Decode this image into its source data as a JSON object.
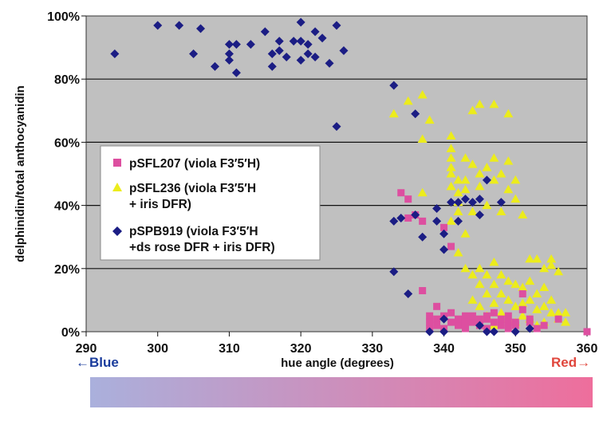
{
  "chart_data": {
    "type": "scatter",
    "xlabel": "hue angle (degrees)",
    "ylabel": "delphinidin/total anthocyanidin",
    "xlim": [
      290,
      360
    ],
    "ylim": [
      0,
      100
    ],
    "x_ticks": [
      "290",
      "300",
      "310",
      "320",
      "330",
      "340",
      "350",
      "360"
    ],
    "y_ticks": [
      "0%",
      "20%",
      "40%",
      "60%",
      "80%",
      "100%"
    ],
    "grid": "horizontal",
    "legend_position": "middle-left",
    "plot_background": "#c0c0c0",
    "hue_bar": {
      "left_label": "Blue",
      "right_label": "Red",
      "left_color": "#aab0dc",
      "right_color": "#ee6e9c",
      "left_label_color": "#1a3c9c",
      "right_label_color": "#e0463c"
    },
    "series": [
      {
        "name": "pSFL207 (viola F3′5′H)",
        "marker": "square",
        "color": "#dd4fa0",
        "points": [
          [
            334,
            44
          ],
          [
            335,
            42
          ],
          [
            335,
            36
          ],
          [
            336,
            37
          ],
          [
            337,
            13
          ],
          [
            337,
            35
          ],
          [
            339,
            8
          ],
          [
            340,
            33
          ],
          [
            341,
            27
          ],
          [
            338,
            5
          ],
          [
            338,
            3
          ],
          [
            339,
            4
          ],
          [
            339,
            2
          ],
          [
            340,
            1
          ],
          [
            340,
            5
          ],
          [
            341,
            3
          ],
          [
            341,
            6
          ],
          [
            342,
            2
          ],
          [
            342,
            4
          ],
          [
            343,
            5
          ],
          [
            343,
            1
          ],
          [
            344,
            3
          ],
          [
            344,
            5
          ],
          [
            345,
            2
          ],
          [
            345,
            4
          ],
          [
            346,
            1
          ],
          [
            346,
            5
          ],
          [
            347,
            3
          ],
          [
            347,
            6
          ],
          [
            348,
            2
          ],
          [
            348,
            4
          ],
          [
            349,
            1
          ],
          [
            349,
            5
          ],
          [
            350,
            3
          ],
          [
            350,
            2
          ],
          [
            351,
            7
          ],
          [
            351,
            12
          ],
          [
            352,
            3
          ],
          [
            352,
            4
          ],
          [
            353,
            1
          ],
          [
            354,
            2
          ],
          [
            356,
            4
          ],
          [
            360,
            0
          ],
          [
            338,
            1
          ],
          [
            343,
            3
          ],
          [
            346,
            4
          ],
          [
            349,
            3
          ]
        ]
      },
      {
        "name": "pSFL236 (viola F3′5′H + iris DFR)",
        "marker": "triangle",
        "color": "#ecec1c",
        "points": [
          [
            333,
            69
          ],
          [
            335,
            73
          ],
          [
            337,
            75
          ],
          [
            337,
            61
          ],
          [
            338,
            67
          ],
          [
            337,
            44
          ],
          [
            341,
            62
          ],
          [
            341,
            58
          ],
          [
            341,
            55
          ],
          [
            341,
            50
          ],
          [
            341,
            46
          ],
          [
            342,
            41
          ],
          [
            342,
            38
          ],
          [
            343,
            55
          ],
          [
            343,
            48
          ],
          [
            343,
            45
          ],
          [
            344,
            70
          ],
          [
            345,
            72
          ],
          [
            345,
            50
          ],
          [
            345,
            46
          ],
          [
            346,
            40
          ],
          [
            346,
            52
          ],
          [
            347,
            72
          ],
          [
            347,
            55
          ],
          [
            347,
            48
          ],
          [
            348,
            50
          ],
          [
            348,
            38
          ],
          [
            349,
            69
          ],
          [
            349,
            54
          ],
          [
            349,
            45
          ],
          [
            350,
            48
          ],
          [
            350,
            42
          ],
          [
            351,
            37
          ],
          [
            352,
            23
          ],
          [
            353,
            23
          ],
          [
            354,
            20
          ],
          [
            355,
            23
          ],
          [
            355,
            21
          ],
          [
            356,
            19
          ],
          [
            344,
            10
          ],
          [
            344,
            18
          ],
          [
            345,
            20
          ],
          [
            345,
            15
          ],
          [
            345,
            8
          ],
          [
            346,
            18
          ],
          [
            346,
            12
          ],
          [
            346,
            5
          ],
          [
            347,
            22
          ],
          [
            347,
            15
          ],
          [
            347,
            9
          ],
          [
            347,
            2
          ],
          [
            348,
            18
          ],
          [
            348,
            12
          ],
          [
            348,
            6
          ],
          [
            349,
            16
          ],
          [
            349,
            10
          ],
          [
            349,
            4
          ],
          [
            350,
            15
          ],
          [
            350,
            8
          ],
          [
            350,
            3
          ],
          [
            351,
            14
          ],
          [
            351,
            9
          ],
          [
            351,
            5
          ],
          [
            352,
            16
          ],
          [
            352,
            10
          ],
          [
            352,
            4
          ],
          [
            353,
            12
          ],
          [
            353,
            7
          ],
          [
            353,
            2
          ],
          [
            354,
            14
          ],
          [
            354,
            8
          ],
          [
            354,
            3
          ],
          [
            355,
            10
          ],
          [
            355,
            6
          ],
          [
            356,
            6
          ],
          [
            356,
            4
          ],
          [
            357,
            6
          ],
          [
            357,
            3
          ],
          [
            341,
            35
          ],
          [
            342,
            25
          ],
          [
            343,
            31
          ],
          [
            344,
            38
          ],
          [
            342,
            44
          ],
          [
            343,
            20
          ],
          [
            342,
            48
          ],
          [
            341,
            52
          ],
          [
            344,
            53
          ]
        ]
      },
      {
        "name": "pSPB919 (viola F3′5′H +ds rose DFR + iris DFR)",
        "marker": "diamond",
        "color": "#1b1d84",
        "points": [
          [
            294,
            88
          ],
          [
            300,
            97
          ],
          [
            303,
            97
          ],
          [
            305,
            88
          ],
          [
            306,
            96
          ],
          [
            308,
            84
          ],
          [
            310,
            91
          ],
          [
            310,
            88
          ],
          [
            310,
            86
          ],
          [
            311,
            82
          ],
          [
            311,
            91
          ],
          [
            313,
            91
          ],
          [
            315,
            95
          ],
          [
            316,
            88
          ],
          [
            316,
            84
          ],
          [
            317,
            89
          ],
          [
            317,
            92
          ],
          [
            318,
            87
          ],
          [
            319,
            92
          ],
          [
            320,
            92
          ],
          [
            320,
            98
          ],
          [
            320,
            86
          ],
          [
            321,
            91
          ],
          [
            321,
            88
          ],
          [
            322,
            95
          ],
          [
            322,
            87
          ],
          [
            323,
            93
          ],
          [
            324,
            85
          ],
          [
            325,
            97
          ],
          [
            326,
            89
          ],
          [
            325,
            65
          ],
          [
            333,
            78
          ],
          [
            333,
            35
          ],
          [
            334,
            36
          ],
          [
            336,
            37
          ],
          [
            336,
            69
          ],
          [
            337,
            30
          ],
          [
            335,
            12
          ],
          [
            333,
            19
          ],
          [
            339,
            39
          ],
          [
            339,
            35
          ],
          [
            340,
            31
          ],
          [
            340,
            26
          ],
          [
            341,
            41
          ],
          [
            342,
            41
          ],
          [
            342,
            35
          ],
          [
            343,
            42
          ],
          [
            344,
            41
          ],
          [
            345,
            42
          ],
          [
            345,
            37
          ],
          [
            346,
            48
          ],
          [
            348,
            41
          ],
          [
            340,
            4
          ],
          [
            345,
            2
          ],
          [
            347,
            0
          ],
          [
            350,
            0
          ],
          [
            352,
            1
          ],
          [
            346,
            0
          ],
          [
            340,
            0
          ],
          [
            338,
            0
          ]
        ]
      }
    ]
  }
}
